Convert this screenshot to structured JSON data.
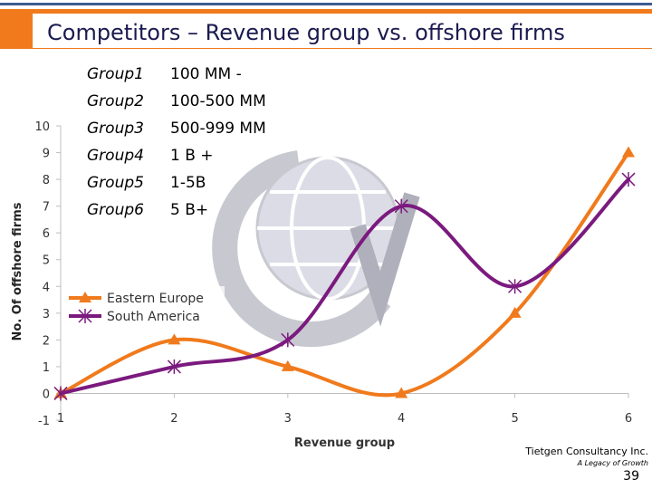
{
  "slide": {
    "title": "Competitors – Revenue group vs. offshore firms",
    "page_number": "39",
    "brand": "Tietgen Consultancy Inc.",
    "tagline": "A Legacy of Growth"
  },
  "groups": [
    {
      "name": "Group1",
      "range": "100 MM -"
    },
    {
      "name": "Group2",
      "range": "100-500 MM"
    },
    {
      "name": "Group3",
      "range": "500-999 MM"
    },
    {
      "name": "Group4",
      "range": "1 B +"
    },
    {
      "name": "Group5",
      "range": "1-5B"
    },
    {
      "name": "Group6",
      "range": "5 B+"
    }
  ],
  "chart_data": {
    "type": "line",
    "x": [
      1,
      2,
      3,
      4,
      5,
      6
    ],
    "series": [
      {
        "name": "Eastern Europe",
        "values": [
          0,
          2,
          1,
          0,
          3,
          9
        ],
        "color": "#f07a1c",
        "marker": "triangle"
      },
      {
        "name": "South America",
        "values": [
          0,
          1,
          2,
          7,
          4,
          8
        ],
        "color": "#7b1a7e",
        "marker": "star"
      }
    ],
    "xlabel": "Revenue group",
    "ylabel": "No. Of offshore firms",
    "xlim": [
      1,
      6
    ],
    "ylim": [
      -1,
      10
    ],
    "x_ticks": [
      "1",
      "2",
      "3",
      "4",
      "5",
      "6"
    ],
    "y_ticks": [
      "-1",
      "0",
      "1",
      "2",
      "3",
      "4",
      "5",
      "6",
      "7",
      "8",
      "9",
      "10"
    ],
    "grid": false,
    "smoothed": true,
    "legend_position": "left"
  },
  "colors": {
    "accent": "#f07a1c",
    "title": "#1a1a50",
    "band": "#3b5b92",
    "logo": "#c8c8d0"
  }
}
